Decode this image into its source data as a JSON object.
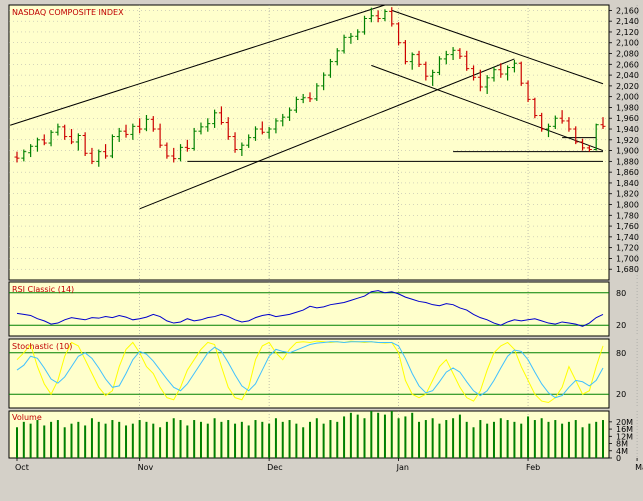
{
  "chart_data": [
    {
      "type": "bar",
      "panel": "price",
      "title": "NASDAQ COMPOSITE INDEX",
      "ylim": [
        1660,
        2170
      ],
      "y_ticks": [
        1680,
        1700,
        1720,
        1740,
        1760,
        1780,
        1800,
        1820,
        1840,
        1860,
        1880,
        1900,
        1920,
        1940,
        1960,
        1980,
        2000,
        2020,
        2040,
        2060,
        2080,
        2100,
        2120,
        2140,
        2160
      ],
      "y_tick_labels": [
        "1,680",
        "1,700",
        "1,720",
        "1,740",
        "1,760",
        "1,780",
        "1,800",
        "1,820",
        "1,840",
        "1,860",
        "1,880",
        "1,900",
        "1,920",
        "1,940",
        "1,960",
        "1,980",
        "2,000",
        "2,020",
        "2,040",
        "2,060",
        "2,080",
        "2,100",
        "2,120",
        "2,140",
        "2,160"
      ],
      "colors": {
        "up": "#008000",
        "down": "#cc0000",
        "lines": "#000000"
      },
      "bars": [
        {
          "t": 1,
          "o": 1888,
          "h": 1898,
          "l": 1878,
          "c": 1886
        },
        {
          "t": 2,
          "o": 1886,
          "h": 1902,
          "l": 1880,
          "c": 1898
        },
        {
          "t": 3,
          "o": 1896,
          "h": 1912,
          "l": 1888,
          "c": 1908
        },
        {
          "t": 4,
          "o": 1908,
          "h": 1924,
          "l": 1898,
          "c": 1920
        },
        {
          "t": 5,
          "o": 1920,
          "h": 1930,
          "l": 1910,
          "c": 1914
        },
        {
          "t": 6,
          "o": 1914,
          "h": 1938,
          "l": 1908,
          "c": 1934
        },
        {
          "t": 7,
          "o": 1934,
          "h": 1950,
          "l": 1928,
          "c": 1944
        },
        {
          "t": 8,
          "o": 1944,
          "h": 1948,
          "l": 1920,
          "c": 1926
        },
        {
          "t": 9,
          "o": 1926,
          "h": 1940,
          "l": 1912,
          "c": 1916
        },
        {
          "t": 10,
          "o": 1916,
          "h": 1932,
          "l": 1900,
          "c": 1928
        },
        {
          "t": 11,
          "o": 1928,
          "h": 1934,
          "l": 1890,
          "c": 1895
        },
        {
          "t": 12,
          "o": 1895,
          "h": 1905,
          "l": 1875,
          "c": 1880
        },
        {
          "t": 13,
          "o": 1880,
          "h": 1902,
          "l": 1870,
          "c": 1898
        },
        {
          "t": 14,
          "o": 1898,
          "h": 1912,
          "l": 1885,
          "c": 1890
        },
        {
          "t": 15,
          "o": 1890,
          "h": 1930,
          "l": 1886,
          "c": 1926
        },
        {
          "t": 16,
          "o": 1926,
          "h": 1942,
          "l": 1916,
          "c": 1936
        },
        {
          "t": 17,
          "o": 1936,
          "h": 1948,
          "l": 1924,
          "c": 1930
        },
        {
          "t": 18,
          "o": 1930,
          "h": 1950,
          "l": 1920,
          "c": 1945
        },
        {
          "t": 19,
          "o": 1945,
          "h": 1960,
          "l": 1932,
          "c": 1940
        },
        {
          "t": 20,
          "o": 1940,
          "h": 1966,
          "l": 1936,
          "c": 1958
        },
        {
          "t": 21,
          "o": 1958,
          "h": 1964,
          "l": 1935,
          "c": 1940
        },
        {
          "t": 22,
          "o": 1940,
          "h": 1950,
          "l": 1905,
          "c": 1910
        },
        {
          "t": 23,
          "o": 1910,
          "h": 1915,
          "l": 1885,
          "c": 1890
        },
        {
          "t": 24,
          "o": 1890,
          "h": 1905,
          "l": 1878,
          "c": 1885
        },
        {
          "t": 25,
          "o": 1885,
          "h": 1912,
          "l": 1880,
          "c": 1906
        },
        {
          "t": 26,
          "o": 1906,
          "h": 1920,
          "l": 1898,
          "c": 1904
        },
        {
          "t": 27,
          "o": 1904,
          "h": 1942,
          "l": 1900,
          "c": 1936
        },
        {
          "t": 28,
          "o": 1936,
          "h": 1952,
          "l": 1930,
          "c": 1944
        },
        {
          "t": 29,
          "o": 1944,
          "h": 1960,
          "l": 1935,
          "c": 1950
        },
        {
          "t": 30,
          "o": 1950,
          "h": 1976,
          "l": 1942,
          "c": 1970
        },
        {
          "t": 31,
          "o": 1970,
          "h": 1982,
          "l": 1948,
          "c": 1952
        },
        {
          "t": 32,
          "o": 1952,
          "h": 1962,
          "l": 1920,
          "c": 1926
        },
        {
          "t": 33,
          "o": 1926,
          "h": 1934,
          "l": 1896,
          "c": 1902
        },
        {
          "t": 34,
          "o": 1902,
          "h": 1915,
          "l": 1890,
          "c": 1910
        },
        {
          "t": 35,
          "o": 1910,
          "h": 1930,
          "l": 1905,
          "c": 1924
        },
        {
          "t": 36,
          "o": 1924,
          "h": 1945,
          "l": 1918,
          "c": 1940
        },
        {
          "t": 37,
          "o": 1940,
          "h": 1954,
          "l": 1930,
          "c": 1934
        },
        {
          "t": 38,
          "o": 1934,
          "h": 1944,
          "l": 1922,
          "c": 1940
        },
        {
          "t": 39,
          "o": 1940,
          "h": 1960,
          "l": 1932,
          "c": 1955
        },
        {
          "t": 40,
          "o": 1955,
          "h": 1968,
          "l": 1945,
          "c": 1962
        },
        {
          "t": 41,
          "o": 1962,
          "h": 1980,
          "l": 1955,
          "c": 1975
        },
        {
          "t": 42,
          "o": 1975,
          "h": 2000,
          "l": 1970,
          "c": 1995
        },
        {
          "t": 43,
          "o": 1995,
          "h": 2005,
          "l": 1988,
          "c": 1998
        },
        {
          "t": 44,
          "o": 1998,
          "h": 2008,
          "l": 1990,
          "c": 1996
        },
        {
          "t": 45,
          "o": 1996,
          "h": 2025,
          "l": 1992,
          "c": 2020
        },
        {
          "t": 46,
          "o": 2020,
          "h": 2045,
          "l": 2012,
          "c": 2040
        },
        {
          "t": 47,
          "o": 2040,
          "h": 2070,
          "l": 2035,
          "c": 2065
        },
        {
          "t": 48,
          "o": 2065,
          "h": 2090,
          "l": 2058,
          "c": 2085
        },
        {
          "t": 49,
          "o": 2085,
          "h": 2115,
          "l": 2080,
          "c": 2110
        },
        {
          "t": 50,
          "o": 2110,
          "h": 2118,
          "l": 2098,
          "c": 2112
        },
        {
          "t": 51,
          "o": 2112,
          "h": 2125,
          "l": 2105,
          "c": 2120
        },
        {
          "t": 52,
          "o": 2120,
          "h": 2150,
          "l": 2115,
          "c": 2145
        },
        {
          "t": 53,
          "o": 2145,
          "h": 2165,
          "l": 2138,
          "c": 2150
        },
        {
          "t": 54,
          "o": 2150,
          "h": 2160,
          "l": 2138,
          "c": 2145
        },
        {
          "t": 55,
          "o": 2145,
          "h": 2162,
          "l": 2140,
          "c": 2158
        },
        {
          "t": 56,
          "o": 2158,
          "h": 2166,
          "l": 2130,
          "c": 2135
        },
        {
          "t": 57,
          "o": 2135,
          "h": 2138,
          "l": 2095,
          "c": 2100
        },
        {
          "t": 58,
          "o": 2100,
          "h": 2105,
          "l": 2060,
          "c": 2065
        },
        {
          "t": 59,
          "o": 2065,
          "h": 2082,
          "l": 2050,
          "c": 2078
        },
        {
          "t": 60,
          "o": 2078,
          "h": 2085,
          "l": 2055,
          "c": 2060
        },
        {
          "t": 61,
          "o": 2060,
          "h": 2065,
          "l": 2030,
          "c": 2038
        },
        {
          "t": 62,
          "o": 2038,
          "h": 2050,
          "l": 2020,
          "c": 2045
        },
        {
          "t": 63,
          "o": 2045,
          "h": 2075,
          "l": 2040,
          "c": 2070
        },
        {
          "t": 64,
          "o": 2070,
          "h": 2085,
          "l": 2060,
          "c": 2078
        },
        {
          "t": 65,
          "o": 2078,
          "h": 2092,
          "l": 2068,
          "c": 2086
        },
        {
          "t": 66,
          "o": 2086,
          "h": 2090,
          "l": 2070,
          "c": 2075
        },
        {
          "t": 67,
          "o": 2075,
          "h": 2085,
          "l": 2048,
          "c": 2052
        },
        {
          "t": 68,
          "o": 2052,
          "h": 2058,
          "l": 2030,
          "c": 2036
        },
        {
          "t": 69,
          "o": 2036,
          "h": 2050,
          "l": 2010,
          "c": 2018
        },
        {
          "t": 70,
          "o": 2018,
          "h": 2040,
          "l": 2005,
          "c": 2035
        },
        {
          "t": 71,
          "o": 2035,
          "h": 2055,
          "l": 2028,
          "c": 2050
        },
        {
          "t": 72,
          "o": 2050,
          "h": 2062,
          "l": 2035,
          "c": 2042
        },
        {
          "t": 73,
          "o": 2042,
          "h": 2058,
          "l": 2030,
          "c": 2054
        },
        {
          "t": 74,
          "o": 2054,
          "h": 2068,
          "l": 2045,
          "c": 2062
        },
        {
          "t": 75,
          "o": 2062,
          "h": 2065,
          "l": 2020,
          "c": 2025
        },
        {
          "t": 76,
          "o": 2025,
          "h": 2030,
          "l": 1990,
          "c": 1995
        },
        {
          "t": 77,
          "o": 1995,
          "h": 1998,
          "l": 1960,
          "c": 1965
        },
        {
          "t": 78,
          "o": 1965,
          "h": 1970,
          "l": 1935,
          "c": 1940
        },
        {
          "t": 79,
          "o": 1940,
          "h": 1950,
          "l": 1925,
          "c": 1945
        },
        {
          "t": 80,
          "o": 1945,
          "h": 1965,
          "l": 1940,
          "c": 1960
        },
        {
          "t": 81,
          "o": 1960,
          "h": 1975,
          "l": 1950,
          "c": 1955
        },
        {
          "t": 82,
          "o": 1955,
          "h": 1962,
          "l": 1935,
          "c": 1940
        },
        {
          "t": 83,
          "o": 1940,
          "h": 1945,
          "l": 1912,
          "c": 1916
        },
        {
          "t": 84,
          "o": 1916,
          "h": 1922,
          "l": 1900,
          "c": 1905
        },
        {
          "t": 85,
          "o": 1905,
          "h": 1910,
          "l": 1898,
          "c": 1902
        },
        {
          "t": 86,
          "o": 1902,
          "h": 1950,
          "l": 1900,
          "c": 1948
        },
        {
          "t": 87,
          "o": 1948,
          "h": 1962,
          "l": 1940,
          "c": 1945
        }
      ],
      "lines": [
        {
          "from": [
            0,
            1947
          ],
          "to": [
            55,
            2170
          ]
        },
        {
          "from": [
            19,
            1792
          ],
          "to": [
            74,
            2070
          ]
        },
        {
          "from": [
            26,
            1880
          ],
          "to": [
            87,
            1880
          ]
        },
        {
          "from": [
            65,
            1898
          ],
          "to": [
            87,
            1898
          ]
        },
        {
          "from": [
            56,
            2160
          ],
          "to": [
            87,
            2024
          ]
        },
        {
          "from": [
            53,
            2058
          ],
          "to": [
            87,
            1900
          ]
        },
        {
          "from": [
            81,
            1924
          ],
          "to": [
            86,
            1924
          ]
        }
      ]
    },
    {
      "type": "line",
      "panel": "rsi",
      "title": "RSI Classic (14)",
      "ylim": [
        0,
        100
      ],
      "y_ticks": [
        20,
        80
      ],
      "y_tick_labels": [
        "20",
        "80"
      ],
      "colors": {
        "line": "#0000cc",
        "guides": "#008000"
      },
      "values": [
        42,
        40,
        38,
        32,
        28,
        22,
        24,
        30,
        34,
        32,
        30,
        34,
        33,
        36,
        34,
        38,
        35,
        30,
        32,
        35,
        40,
        36,
        28,
        24,
        26,
        32,
        28,
        30,
        34,
        36,
        40,
        36,
        30,
        26,
        28,
        34,
        38,
        40,
        36,
        38,
        40,
        44,
        48,
        55,
        52,
        54,
        58,
        60,
        62,
        66,
        70,
        74,
        82,
        84,
        80,
        82,
        78,
        72,
        68,
        64,
        62,
        58,
        56,
        60,
        58,
        52,
        48,
        40,
        34,
        30,
        24,
        20,
        26,
        30,
        28,
        30,
        32,
        28,
        24,
        22,
        26,
        24,
        22,
        18,
        24,
        34,
        40
      ]
    },
    {
      "type": "line",
      "panel": "stochastic",
      "title": "Stochastic (10)",
      "ylim": [
        0,
        100
      ],
      "y_ticks": [
        20,
        80
      ],
      "y_tick_labels": [
        "20",
        "80"
      ],
      "series": [
        {
          "color": "#ffff00",
          "values": [
            70,
            80,
            92,
            60,
            35,
            20,
            40,
            75,
            95,
            90,
            70,
            50,
            30,
            18,
            25,
            60,
            85,
            95,
            80,
            60,
            50,
            30,
            15,
            12,
            30,
            55,
            70,
            85,
            95,
            92,
            60,
            30,
            15,
            12,
            30,
            70,
            90,
            95,
            80,
            70,
            85,
            95,
            96,
            95,
            97,
            96,
            95,
            96,
            95,
            97,
            96,
            95,
            96,
            95,
            94,
            95,
            80,
            40,
            20,
            15,
            20,
            40,
            60,
            70,
            50,
            30,
            15,
            10,
            25,
            55,
            80,
            90,
            95,
            85,
            60,
            40,
            20,
            10,
            8,
            15,
            30,
            60,
            40,
            20,
            25,
            60,
            90
          ]
        },
        {
          "color": "#40c0ff",
          "values": [
            55,
            62,
            75,
            72,
            58,
            42,
            36,
            45,
            60,
            75,
            80,
            72,
            58,
            42,
            30,
            32,
            50,
            70,
            82,
            78,
            68,
            55,
            42,
            30,
            25,
            35,
            50,
            65,
            80,
            88,
            82,
            66,
            48,
            32,
            25,
            35,
            55,
            75,
            85,
            82,
            80,
            84,
            88,
            92,
            94,
            95,
            96,
            96,
            95,
            96,
            96,
            96,
            96,
            95,
            95,
            95,
            90,
            72,
            50,
            32,
            22,
            25,
            38,
            52,
            58,
            52,
            38,
            25,
            18,
            25,
            40,
            58,
            75,
            84,
            82,
            70,
            52,
            35,
            22,
            15,
            18,
            30,
            40,
            38,
            32,
            40,
            58
          ]
        }
      ]
    },
    {
      "type": "bar",
      "panel": "volume",
      "title": "Volume",
      "ylim": [
        0,
        26
      ],
      "y_ticks": [
        0,
        4,
        8,
        12,
        16,
        20
      ],
      "y_tick_labels": [
        "0",
        "4M",
        "8M",
        "12M",
        "16M",
        "20M"
      ],
      "colors": {
        "bar": "#008000"
      },
      "values": [
        17,
        20,
        19,
        21,
        18,
        20,
        21,
        17,
        19,
        20,
        18,
        22,
        20,
        19,
        21,
        20,
        18,
        19,
        21,
        20,
        19,
        17,
        20,
        22,
        21,
        18,
        21,
        20,
        19,
        22,
        20,
        21,
        19,
        20,
        18,
        21,
        20,
        19,
        22,
        20,
        21,
        19,
        17,
        20,
        22,
        19,
        21,
        20,
        23,
        25,
        24,
        22,
        26,
        25,
        24,
        26,
        22,
        23,
        25,
        20,
        21,
        22,
        19,
        21,
        22,
        24,
        20,
        17,
        21,
        19,
        20,
        22,
        21,
        20,
        19,
        23,
        21,
        22,
        20,
        21,
        19,
        20,
        21,
        17,
        19,
        20,
        21
      ]
    }
  ],
  "x_axis": {
    "labels": [
      "Oct",
      "Nov",
      "Dec",
      "Jan",
      "Feb",
      "Mar"
    ],
    "positions": [
      0,
      19,
      38,
      57,
      76,
      92
    ]
  }
}
